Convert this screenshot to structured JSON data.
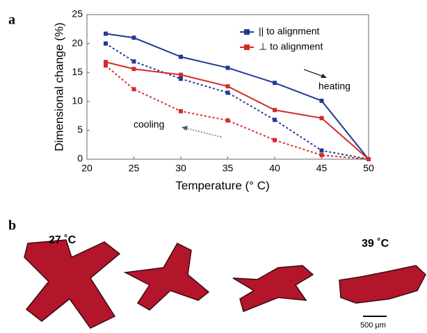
{
  "panel_labels": {
    "a": "a",
    "b": "b"
  },
  "chart_data": {
    "type": "line",
    "x_label": "Temperature (° C)",
    "y_label": "Dimensional change (%)",
    "x": [
      22,
      25,
      30,
      35,
      40,
      45,
      50
    ],
    "series": [
      {
        "name": "|| to alignment",
        "color": "#1f3a93",
        "dashed": false,
        "values": [
          21.7,
          21.0,
          17.7,
          15.8,
          13.2,
          10.1,
          0
        ]
      },
      {
        "color": "#1f3a93",
        "dashed": true,
        "values": [
          20.0,
          16.9,
          13.9,
          11.5,
          6.8,
          1.5,
          0
        ]
      },
      {
        "name": "⊥ to alignment",
        "color": "#d42a2a",
        "dashed": false,
        "values": [
          16.8,
          15.6,
          14.6,
          12.6,
          8.5,
          7.1,
          0
        ]
      },
      {
        "color": "#d42a2a",
        "dashed": true,
        "values": [
          16.2,
          12.1,
          8.3,
          6.7,
          3.3,
          0.7,
          0
        ]
      }
    ],
    "annotations": {
      "heating": "heating",
      "cooling": "cooling"
    },
    "xlim": [
      20,
      50
    ],
    "xticks": [
      20,
      25,
      30,
      35,
      40,
      45,
      50
    ],
    "ylim": [
      0,
      25
    ],
    "yticks": [
      0,
      5,
      10,
      15,
      20,
      25
    ]
  },
  "images": {
    "left_label": "27 ˚C",
    "right_label": "39 ˚C",
    "scale_bar": "500 μm"
  }
}
